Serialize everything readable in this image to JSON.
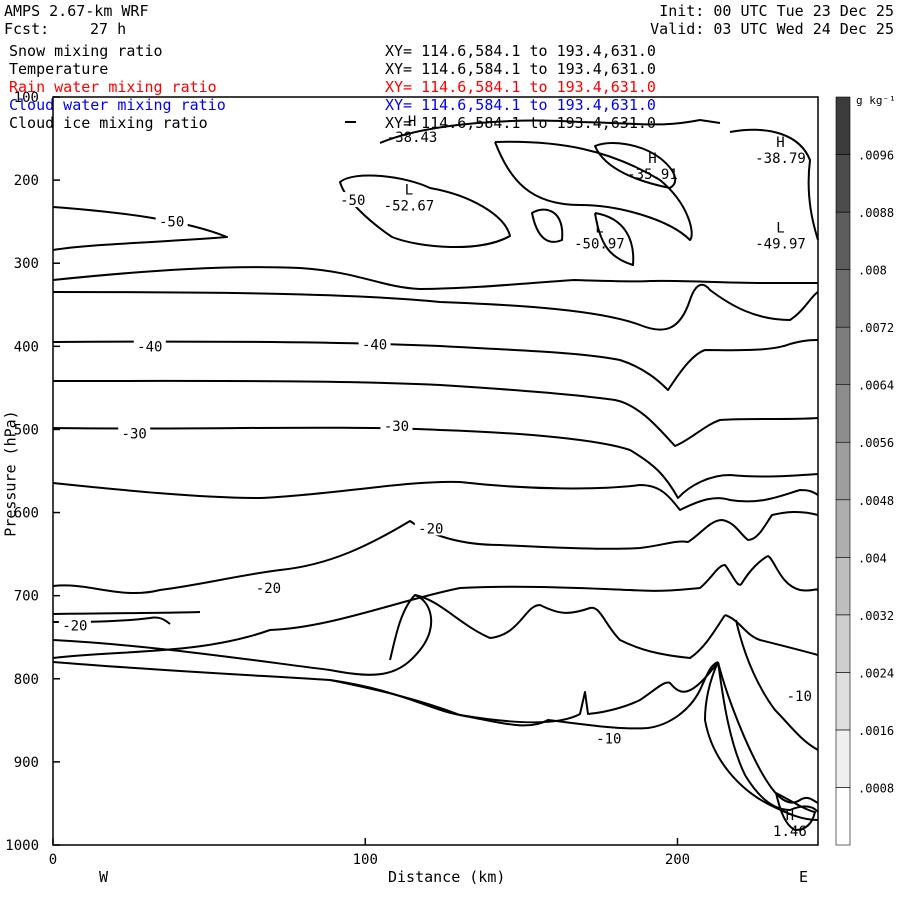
{
  "header": {
    "model": "AMPS 2.67-km WRF",
    "fcst_label": "Fcst:",
    "fcst_value": "27 h",
    "init": "Init: 00 UTC Tue 23 Dec 25",
    "valid": "Valid: 03 UTC Wed 24 Dec 25"
  },
  "fields": [
    {
      "name": "Snow mixing ratio",
      "xy": "XY= 114.6,584.1 to 193.4,631.0",
      "color": "#000000"
    },
    {
      "name": "Temperature",
      "xy": "XY= 114.6,584.1 to 193.4,631.0",
      "color": "#000000"
    },
    {
      "name": "Rain water mixing ratio",
      "xy": "XY= 114.6,584.1 to 193.4,631.0",
      "color": "#ff0000"
    },
    {
      "name": "Cloud water mixing ratio",
      "xy": "XY= 114.6,584.1 to 193.4,631.0",
      "color": "#0000ff"
    },
    {
      "name": "Cloud ice mixing ratio",
      "xy": "XY= 114.6,584.1 to 193.4,631.0",
      "color": "#000000"
    }
  ],
  "chart_data": {
    "type": "contour",
    "xlabel": "Distance (km)",
    "ylabel": "Pressure (hPa)",
    "xlim": [
      0,
      245
    ],
    "ylim": [
      1000,
      100
    ],
    "x_ticks": [
      0,
      100,
      200
    ],
    "y_ticks": [
      100,
      200,
      300,
      400,
      500,
      600,
      700,
      800,
      900,
      1000
    ],
    "x_end_labels": {
      "left": "W",
      "right": "E"
    },
    "colorbar": {
      "unit": "g kg⁻¹",
      "labels": [
        ".0008",
        ".0016",
        ".0024",
        ".0032",
        ".004",
        ".0048",
        ".0056",
        ".0064",
        ".0072",
        ".008",
        ".0088",
        ".0096"
      ]
    },
    "contour_labels": [
      {
        "text": "-50",
        "x": 38,
        "p": 250
      },
      {
        "text": "-50",
        "x": 96,
        "p": 224
      },
      {
        "text": "-40",
        "x": 31,
        "p": 400
      },
      {
        "text": "-40",
        "x": 103,
        "p": 398
      },
      {
        "text": "-30",
        "x": 26,
        "p": 505
      },
      {
        "text": "-30",
        "x": 110,
        "p": 496
      },
      {
        "text": "-20",
        "x": 121,
        "p": 619
      },
      {
        "text": "-20",
        "x": 69,
        "p": 691
      },
      {
        "text": "-20",
        "x": 7,
        "p": 736
      },
      {
        "text": "-10",
        "x": 178,
        "p": 872
      },
      {
        "text": "-10",
        "x": 239,
        "p": 821
      }
    ],
    "extrema": [
      {
        "kind": "H",
        "value": "-38.43",
        "x": 115,
        "p": 140
      },
      {
        "kind": "L",
        "value": "-52.67",
        "x": 114,
        "p": 222
      },
      {
        "kind": "H",
        "value": "-35.91",
        "x": 192,
        "p": 184
      },
      {
        "kind": "H",
        "value": "-38.79",
        "x": 233,
        "p": 165
      },
      {
        "kind": "L",
        "value": "-50.97",
        "x": 175,
        "p": 268
      },
      {
        "kind": "L",
        "value": "-49.97",
        "x": 233,
        "p": 268
      },
      {
        "kind": "H",
        "value": "1.46",
        "x": 236,
        "p": 975
      }
    ]
  }
}
